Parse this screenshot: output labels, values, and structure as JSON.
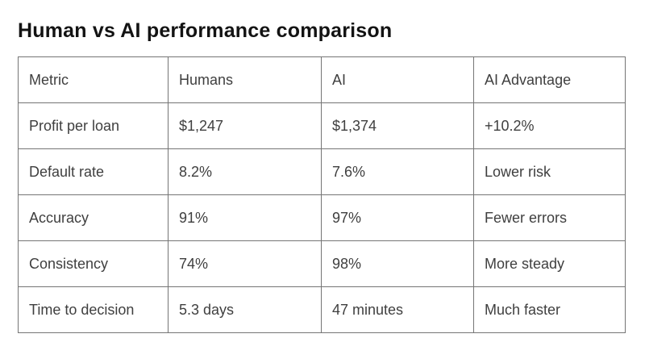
{
  "page": {
    "title": "Human vs AI performance comparison"
  },
  "table": {
    "headers": [
      "Metric",
      "Humans",
      "AI",
      "AI Advantage"
    ],
    "rows": [
      [
        "Profit per loan",
        "$1,247",
        "$1,374",
        "+10.2%"
      ],
      [
        "Default rate",
        "8.2%",
        "7.6%",
        "Lower risk"
      ],
      [
        "Accuracy",
        "91%",
        "97%",
        "Fewer errors"
      ],
      [
        "Consistency",
        "74%",
        "98%",
        "More steady"
      ],
      [
        "Time to decision",
        "5.3 days",
        "47 minutes",
        "Much faster"
      ]
    ]
  },
  "chart_data": {
    "type": "table",
    "title": "Human vs AI performance comparison",
    "columns": [
      "Metric",
      "Humans",
      "AI",
      "AI Advantage"
    ],
    "rows": [
      {
        "metric": "Profit per loan",
        "humans": "$1,247",
        "ai": "$1,374",
        "ai_advantage": "+10.2%"
      },
      {
        "metric": "Default rate",
        "humans": "8.2%",
        "ai": "7.6%",
        "ai_advantage": "Lower risk"
      },
      {
        "metric": "Accuracy",
        "humans": "91%",
        "ai": "97%",
        "ai_advantage": "Fewer errors"
      },
      {
        "metric": "Consistency",
        "humans": "74%",
        "ai": "98%",
        "ai_advantage": "More steady"
      },
      {
        "metric": "Time to decision",
        "humans": "5.3 days",
        "ai": "47 minutes",
        "ai_advantage": "Much faster"
      }
    ]
  },
  "colors": {
    "title_text": "#131313",
    "cell_text": "#3f3f3f",
    "border": "#757575",
    "background": "#ffffff"
  }
}
